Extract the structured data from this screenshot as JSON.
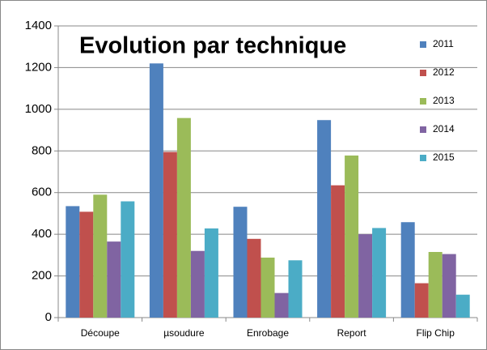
{
  "chart_data": {
    "type": "bar",
    "title": "Evolution par technique",
    "categories": [
      "Découpe",
      "µsoudure",
      "Enrobage",
      "Report",
      "Flip Chip"
    ],
    "series": [
      {
        "name": "2011",
        "color": "#4f81bd",
        "values": [
          535,
          1220,
          532,
          948,
          458
        ]
      },
      {
        "name": "2012",
        "color": "#c0504d",
        "values": [
          508,
          795,
          378,
          635,
          165
        ]
      },
      {
        "name": "2013",
        "color": "#9bbb59",
        "values": [
          590,
          958,
          288,
          778,
          315
        ]
      },
      {
        "name": "2014",
        "color": "#8064a2",
        "values": [
          365,
          320,
          118,
          400,
          305
        ]
      },
      {
        "name": "2015",
        "color": "#4bacc6",
        "values": [
          558,
          428,
          275,
          430,
          110
        ]
      }
    ],
    "ylim": [
      0,
      1400
    ],
    "yticks": [
      0,
      200,
      400,
      600,
      800,
      1000,
      1200,
      1400
    ],
    "grid": true
  }
}
